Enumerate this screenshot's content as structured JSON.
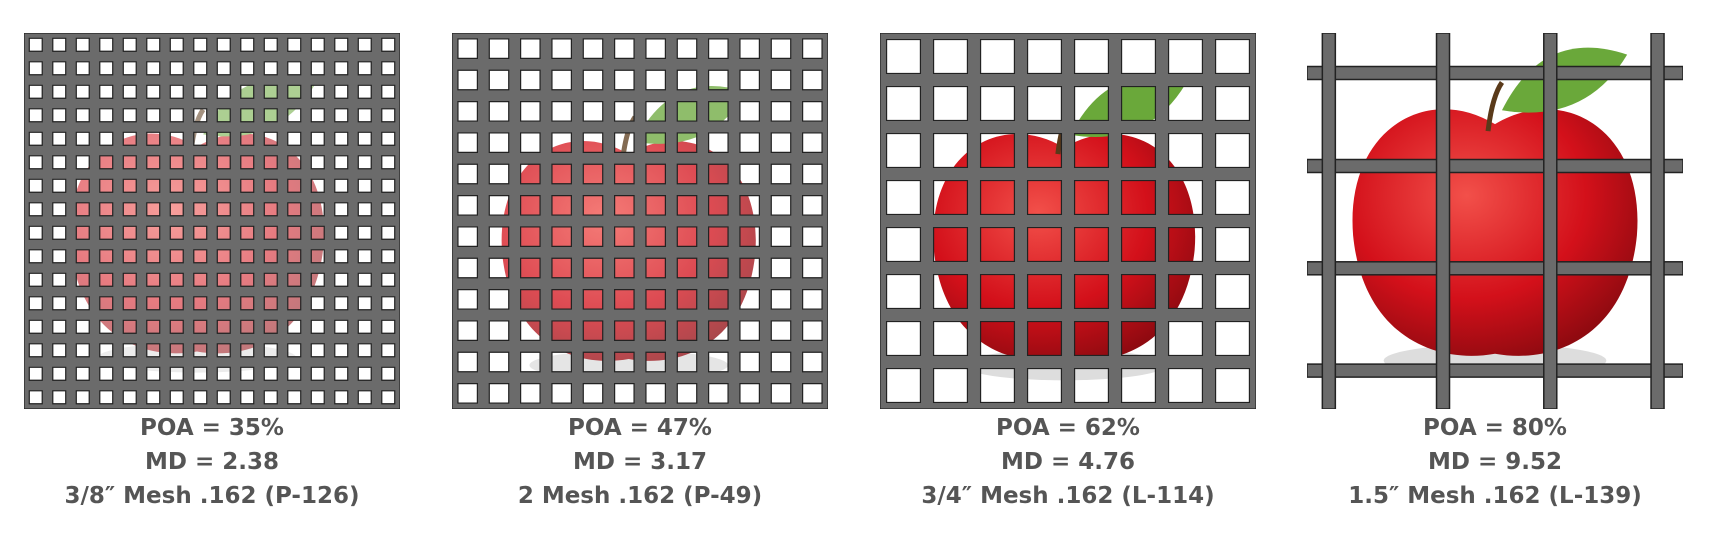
{
  "panels": [
    {
      "poa": "POA = 35%",
      "md": "MD = 2.38",
      "mesh": "3/8″ Mesh .162 (P-126)"
    },
    {
      "poa": "POA = 47%",
      "md": "MD = 3.17",
      "mesh": "2 Mesh .162 (P-49)"
    },
    {
      "poa": "POA = 62%",
      "md": "MD = 4.76",
      "mesh": "3/4″ Mesh .162 (L-114)"
    },
    {
      "poa": "POA = 80%",
      "md": "MD = 9.52",
      "mesh": "1.5″ Mesh .162 (L-139)"
    }
  ]
}
